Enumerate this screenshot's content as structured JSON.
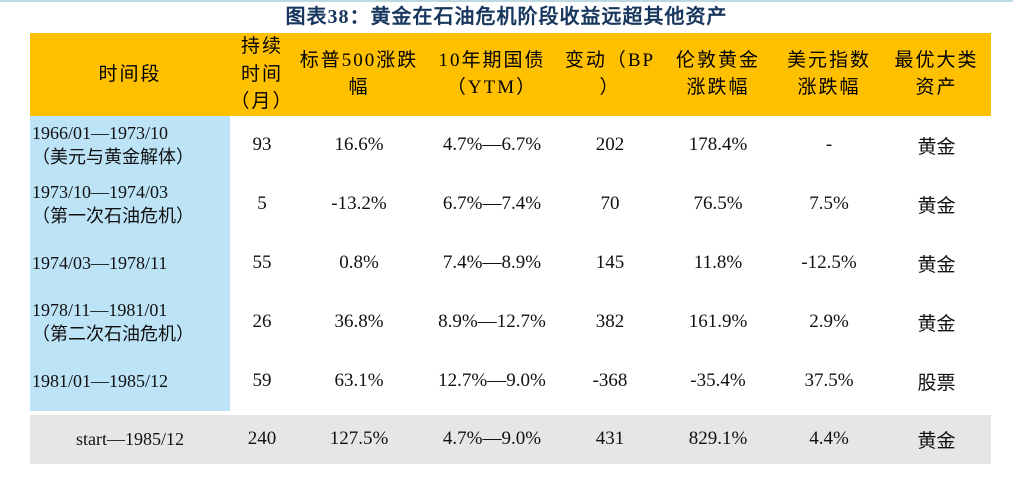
{
  "page": {
    "title": "图表38：黄金在石油危机阶段收益远超其他资产",
    "title_color": "#17375e",
    "top_rule_color": "#bcd9df"
  },
  "table": {
    "header_bg": "#ffc000",
    "period_column_bg": "#bde3f7",
    "summary_row_bg": "#e7e6e6",
    "columns": [
      {
        "key": "period",
        "label": "时间段"
      },
      {
        "key": "duration",
        "label": "持续\n时间\n（月）"
      },
      {
        "key": "sp500",
        "label": "标普500涨跌\n幅"
      },
      {
        "key": "treasury",
        "label": "10年期国债\n（YTM）"
      },
      {
        "key": "bp",
        "label": "变动（BP\n）"
      },
      {
        "key": "gold",
        "label": "伦敦黄金\n涨跌幅"
      },
      {
        "key": "usd",
        "label": "美元指数\n涨跌幅"
      },
      {
        "key": "best",
        "label": "最优大类\n资产"
      }
    ],
    "rows": [
      {
        "period": "1966/01—1973/10\n（美元与黄金解体）",
        "duration": "93",
        "sp500": "16.6%",
        "treasury": "4.7%—6.7%",
        "bp": "202",
        "gold": "178.4%",
        "usd": "-",
        "best": "黄金"
      },
      {
        "period": "1973/10—1974/03\n（第一次石油危机）",
        "duration": "5",
        "sp500": "-13.2%",
        "treasury": "6.7%—7.4%",
        "bp": "70",
        "gold": "76.5%",
        "usd": "7.5%",
        "best": "黄金"
      },
      {
        "period": "1974/03—1978/11",
        "duration": "55",
        "sp500": "0.8%",
        "treasury": "7.4%—8.9%",
        "bp": "145",
        "gold": "11.8%",
        "usd": "-12.5%",
        "best": "黄金"
      },
      {
        "period": "1978/11—1981/01\n（第二次石油危机）",
        "duration": "26",
        "sp500": "36.8%",
        "treasury": "8.9%—12.7%",
        "bp": "382",
        "gold": "161.9%",
        "usd": "2.9%",
        "best": "黄金"
      },
      {
        "period": "1981/01—1985/12",
        "duration": "59",
        "sp500": "63.1%",
        "treasury": "12.7%—9.0%",
        "bp": "-368",
        "gold": "-35.4%",
        "usd": "37.5%",
        "best": "股票"
      }
    ],
    "summary_row": {
      "period": "start—1985/12",
      "duration": "240",
      "sp500": "127.5%",
      "treasury": "4.7%—9.0%",
      "bp": "431",
      "gold": "829.1%",
      "usd": "4.4%",
      "best": "黄金"
    }
  }
}
